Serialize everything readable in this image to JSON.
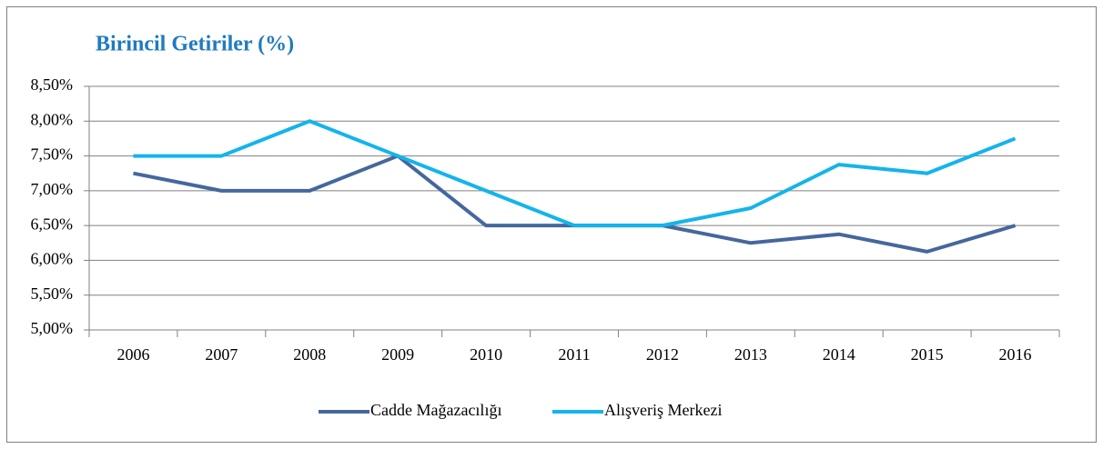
{
  "chart_data": {
    "type": "line",
    "title": "Birincil Getiriler (%)",
    "categories": [
      "2006",
      "2007",
      "2008",
      "2009",
      "2010",
      "2011",
      "2012",
      "2013",
      "2014",
      "2015",
      "2016"
    ],
    "series": [
      {
        "name": "Cadde Mağazacılığı",
        "color": "#44679e",
        "values": [
          7.25,
          7.0,
          7.0,
          7.5,
          6.5,
          6.5,
          6.5,
          6.25,
          6.375,
          6.125,
          6.5
        ]
      },
      {
        "name": "Alışveriş Merkezi",
        "color": "#14b4ea",
        "values": [
          7.5,
          7.5,
          8.0,
          7.5,
          7.0,
          6.5,
          6.5,
          6.75,
          7.375,
          7.25,
          7.75
        ]
      }
    ],
    "ylim": [
      5.0,
      8.5
    ],
    "yticks": [
      {
        "value": 5.0,
        "label": "5,00%"
      },
      {
        "value": 5.5,
        "label": "5,50%"
      },
      {
        "value": 6.0,
        "label": "6,00%"
      },
      {
        "value": 6.5,
        "label": "6,50%"
      },
      {
        "value": 7.0,
        "label": "7,00%"
      },
      {
        "value": 7.5,
        "label": "7,50%"
      },
      {
        "value": 8.0,
        "label": "8,00%"
      },
      {
        "value": 8.5,
        "label": "8,50%"
      }
    ],
    "grid": true
  }
}
